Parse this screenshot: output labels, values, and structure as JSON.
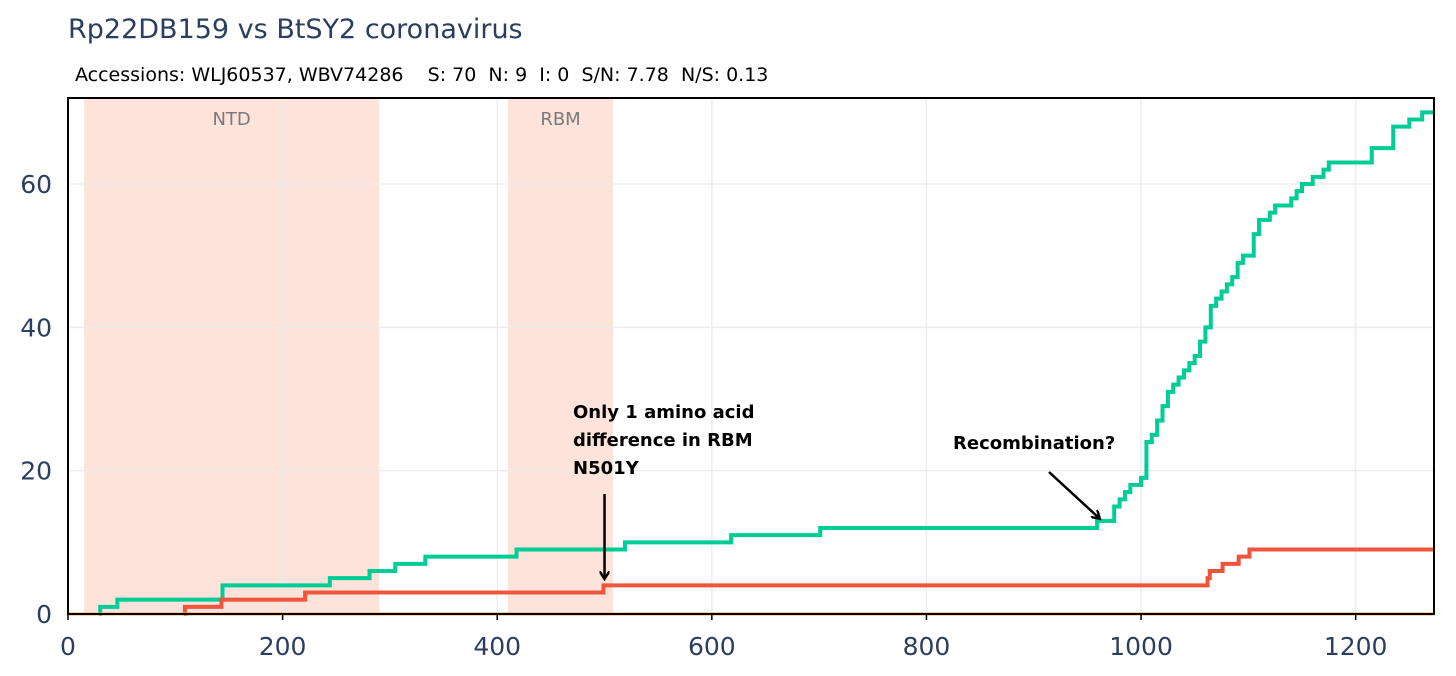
{
  "title": "Rp22DB159 vs BtSY2 coronavirus",
  "subtitle": "Accessions: WLJ60537, WBV74286    S: 70  N: 9  I: 0  S/N: 7.78  N/S: 0.13",
  "chart_data": {
    "type": "line",
    "xlim": [
      0,
      1273
    ],
    "ylim": [
      0,
      72
    ],
    "x_ticks": [
      0,
      200,
      400,
      600,
      800,
      1000,
      1200
    ],
    "y_ticks": [
      0,
      20,
      40,
      60
    ],
    "grid": true,
    "colors": {
      "synonymous": "#00cc96",
      "nonsynonymous": "#ef553b",
      "baseline": "#ffa15a",
      "region_fill": "#fde3d9",
      "grid": "#ebebeb",
      "axis_text": "#2a3f5f"
    },
    "regions": [
      {
        "label": "NTD",
        "x0": 15,
        "x1": 290
      },
      {
        "label": "RBM",
        "x0": 410,
        "x1": 508
      }
    ],
    "series": [
      {
        "color": "#00cc96",
        "points": [
          [
            29,
            0
          ],
          [
            30,
            1
          ],
          [
            45,
            1
          ],
          [
            46,
            2
          ],
          [
            143,
            2
          ],
          [
            144,
            4
          ],
          [
            243,
            4
          ],
          [
            244,
            5
          ],
          [
            280,
            5
          ],
          [
            281,
            6
          ],
          [
            304,
            6
          ],
          [
            305,
            7
          ],
          [
            332,
            7
          ],
          [
            333,
            8
          ],
          [
            417,
            8
          ],
          [
            418,
            9
          ],
          [
            518,
            9
          ],
          [
            519,
            10
          ],
          [
            617,
            10
          ],
          [
            618,
            11
          ],
          [
            700,
            11
          ],
          [
            701,
            12
          ],
          [
            958,
            12
          ],
          [
            959,
            13
          ],
          [
            970,
            13
          ],
          [
            975,
            15
          ],
          [
            980,
            16
          ],
          [
            985,
            17
          ],
          [
            990,
            18
          ],
          [
            1000,
            19
          ],
          [
            1005,
            24
          ],
          [
            1010,
            25
          ],
          [
            1015,
            27
          ],
          [
            1020,
            29
          ],
          [
            1025,
            31
          ],
          [
            1030,
            32
          ],
          [
            1035,
            33
          ],
          [
            1040,
            34
          ],
          [
            1045,
            35
          ],
          [
            1050,
            36
          ],
          [
            1055,
            38
          ],
          [
            1060,
            40
          ],
          [
            1065,
            43
          ],
          [
            1070,
            44
          ],
          [
            1075,
            45
          ],
          [
            1080,
            46
          ],
          [
            1085,
            47
          ],
          [
            1090,
            49
          ],
          [
            1095,
            50
          ],
          [
            1105,
            53
          ],
          [
            1110,
            55
          ],
          [
            1120,
            56
          ],
          [
            1125,
            57
          ],
          [
            1140,
            58
          ],
          [
            1145,
            59
          ],
          [
            1150,
            60
          ],
          [
            1160,
            61
          ],
          [
            1170,
            62
          ],
          [
            1175,
            63
          ],
          [
            1210,
            63
          ],
          [
            1215,
            65
          ],
          [
            1230,
            65
          ],
          [
            1235,
            68
          ],
          [
            1245,
            68
          ],
          [
            1250,
            69
          ],
          [
            1260,
            69
          ],
          [
            1262,
            70
          ],
          [
            1273,
            70
          ]
        ]
      },
      {
        "color": "#ef553b",
        "points": [
          [
            108,
            0
          ],
          [
            109,
            1
          ],
          [
            142,
            1
          ],
          [
            143,
            2
          ],
          [
            175,
            2
          ],
          [
            176,
            2
          ],
          [
            220,
            2
          ],
          [
            221,
            3
          ],
          [
            498,
            3
          ],
          [
            499,
            4
          ],
          [
            1060,
            4
          ],
          [
            1062,
            5
          ],
          [
            1064,
            6
          ],
          [
            1075,
            6
          ],
          [
            1076,
            7
          ],
          [
            1090,
            7
          ],
          [
            1091,
            8
          ],
          [
            1100,
            8
          ],
          [
            1101,
            9
          ],
          [
            1273,
            9
          ]
        ]
      },
      {
        "color": "#ffa15a",
        "points": [
          [
            0,
            0
          ],
          [
            1273,
            0
          ]
        ]
      }
    ],
    "annotations": [
      {
        "lines": [
          "Only 1 amino acid",
          "difference in RBM",
          "N501Y"
        ]
      },
      {
        "lines": [
          "Recombination?"
        ]
      }
    ]
  }
}
